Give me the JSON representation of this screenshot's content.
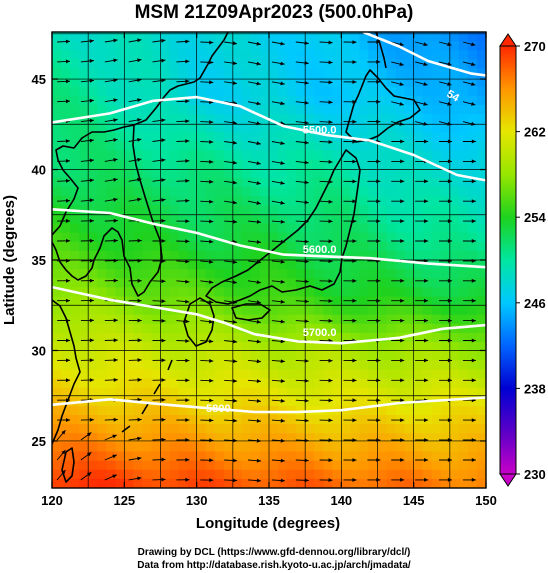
{
  "title": "MSM 21Z09Apr2023 (500.0hPa)",
  "xlabel": "Longitude (degrees)",
  "ylabel": "Latitude  (degrees)",
  "credits": {
    "drawing": "Drawing by DCL (https://www.gfd-dennou.org/library/dcl/)",
    "data": "Data from http://database.rish.kyoto-u.ac.jp/arch/jmadata/"
  },
  "chart_data": {
    "type": "heatmap",
    "xlim": [
      120,
      150
    ],
    "ylim": [
      22.4,
      47.6
    ],
    "x_ticks": [
      "120",
      "125",
      "130",
      "135",
      "140",
      "145",
      "150"
    ],
    "y_ticks": [
      "25",
      "30",
      "35",
      "40",
      "45"
    ],
    "grid": true,
    "colorbar": {
      "range": [
        230,
        270
      ],
      "ticks": [
        "230",
        "238",
        "246",
        "254",
        "262",
        "270"
      ],
      "stops": [
        {
          "v": 230,
          "c": "#c800c8"
        },
        {
          "v": 234,
          "c": "#5a00c8"
        },
        {
          "v": 238,
          "c": "#0000d2"
        },
        {
          "v": 242,
          "c": "#0064ff"
        },
        {
          "v": 246,
          "c": "#00c8ff"
        },
        {
          "v": 250,
          "c": "#00e6a0"
        },
        {
          "v": 254,
          "c": "#1ed21e"
        },
        {
          "v": 258,
          "c": "#96e600"
        },
        {
          "v": 262,
          "c": "#e6e600"
        },
        {
          "v": 266,
          "c": "#ff9600"
        },
        {
          "v": 270,
          "c": "#ff2800"
        }
      ]
    },
    "contours": [
      {
        "label": "5500.0",
        "label_at": [
          138.5,
          42.0
        ],
        "points": [
          [
            120,
            42.6
          ],
          [
            124,
            43.1
          ],
          [
            127,
            43.8
          ],
          [
            130,
            44.0
          ],
          [
            133,
            43.5
          ],
          [
            136,
            42.4
          ],
          [
            139,
            41.9
          ],
          [
            142,
            41.6
          ],
          [
            145,
            40.8
          ],
          [
            148,
            39.7
          ],
          [
            150,
            39.4
          ]
        ]
      },
      {
        "label": "5600.0",
        "label_at": [
          138.5,
          35.4
        ],
        "points": [
          [
            120,
            37.8
          ],
          [
            124,
            37.6
          ],
          [
            127,
            37.0
          ],
          [
            130,
            36.5
          ],
          [
            133,
            35.8
          ],
          [
            136,
            35.3
          ],
          [
            139,
            35.2
          ],
          [
            142,
            35.1
          ],
          [
            146,
            34.8
          ],
          [
            150,
            34.6
          ]
        ]
      },
      {
        "label": "5700.0",
        "label_at": [
          138.5,
          30.8
        ],
        "points": [
          [
            120,
            33.5
          ],
          [
            124,
            32.8
          ],
          [
            127,
            32.4
          ],
          [
            130,
            32.0
          ],
          [
            132,
            31.5
          ],
          [
            134,
            30.9
          ],
          [
            137,
            30.5
          ],
          [
            140,
            30.4
          ],
          [
            144,
            30.7
          ],
          [
            147,
            31.2
          ],
          [
            150,
            31.4
          ]
        ]
      },
      {
        "label": "5800",
        "label_at": [
          131.5,
          26.6
        ],
        "points": [
          [
            120,
            27.0
          ],
          [
            124,
            27.3
          ],
          [
            128,
            27.0
          ],
          [
            131,
            26.8
          ],
          [
            134,
            26.6
          ],
          [
            137,
            26.6
          ],
          [
            140,
            26.7
          ],
          [
            144,
            27.1
          ],
          [
            150,
            27.4
          ]
        ]
      },
      {
        "label": "",
        "label_at": null,
        "points": [
          [
            141.5,
            47.6
          ],
          [
            144,
            46.8
          ],
          [
            146,
            46.0
          ],
          [
            149,
            45.3
          ],
          [
            150,
            45.2
          ]
        ]
      }
    ],
    "contour_labels_partial": [
      "54"
    ],
    "temperature_field": [
      {
        "lat": 47.6,
        "vals": [
          [
            120,
            249
          ],
          [
            128,
            248
          ],
          [
            135,
            247
          ],
          [
            140,
            246
          ],
          [
            145,
            244
          ],
          [
            150,
            243
          ]
        ]
      },
      {
        "lat": 44,
        "vals": [
          [
            120,
            251
          ],
          [
            126,
            249
          ],
          [
            130,
            247
          ],
          [
            135,
            247
          ],
          [
            140,
            246
          ],
          [
            145,
            246
          ],
          [
            150,
            244
          ]
        ]
      },
      {
        "lat": 40,
        "vals": [
          [
            120,
            252
          ],
          [
            130,
            251
          ],
          [
            135,
            250
          ],
          [
            140,
            250
          ],
          [
            145,
            248
          ],
          [
            150,
            248
          ]
        ]
      },
      {
        "lat": 36,
        "vals": [
          [
            120,
            255
          ],
          [
            130,
            253
          ],
          [
            135,
            253
          ],
          [
            140,
            252
          ],
          [
            145,
            251
          ],
          [
            150,
            250
          ]
        ]
      },
      {
        "lat": 33,
        "vals": [
          [
            120,
            258
          ],
          [
            130,
            256
          ],
          [
            135,
            255
          ],
          [
            140,
            254
          ],
          [
            150,
            253
          ]
        ]
      },
      {
        "lat": 30,
        "vals": [
          [
            120,
            261
          ],
          [
            130,
            260
          ],
          [
            140,
            259
          ],
          [
            150,
            258
          ]
        ]
      },
      {
        "lat": 27,
        "vals": [
          [
            120,
            264
          ],
          [
            130,
            263
          ],
          [
            140,
            262
          ],
          [
            150,
            262
          ]
        ]
      },
      {
        "lat": 22.4,
        "vals": [
          [
            120,
            270
          ],
          [
            130,
            269
          ],
          [
            140,
            268
          ],
          [
            150,
            267
          ]
        ]
      }
    ],
    "colors": {
      "contour": "#ffffff",
      "vectors": "#000000",
      "coast": "#000000",
      "grid": "#000000"
    }
  }
}
